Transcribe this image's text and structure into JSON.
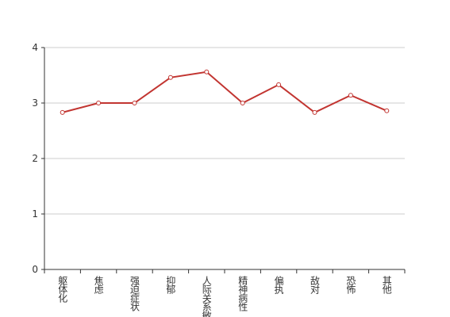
{
  "chart_data": {
    "type": "line",
    "categories": [
      "躯体化",
      "焦虑",
      "强迫症状",
      "抑郁",
      "人际关系敏感",
      "精神病性",
      "偏执",
      "敌对",
      "恐怖",
      "其他"
    ],
    "series": [
      {
        "color": "#c23531",
        "values": [
          2.83,
          3.0,
          3.0,
          3.46,
          3.56,
          3.0,
          3.33,
          2.83,
          3.14,
          2.86
        ]
      }
    ],
    "ylim": [
      0,
      4
    ],
    "yticks": [
      0,
      1,
      2,
      3,
      4
    ],
    "grid": true
  }
}
